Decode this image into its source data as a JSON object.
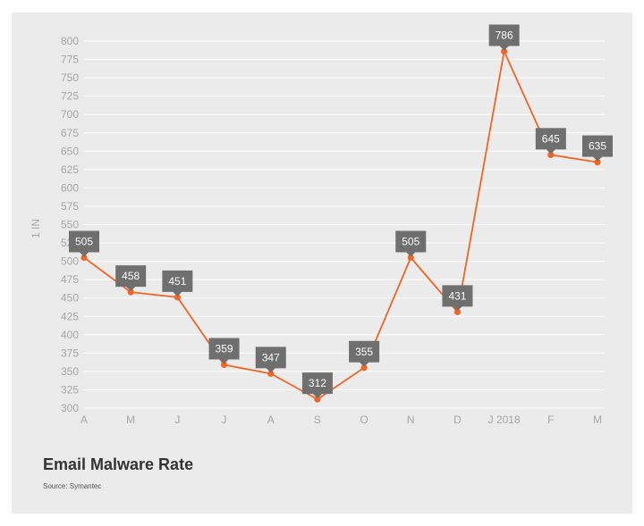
{
  "chart_data": {
    "type": "line",
    "title": "Email Malware Rate",
    "source": "Source: Symantec",
    "ylabel": "1 IN",
    "xlabel": "",
    "categories": [
      "A",
      "M",
      "J",
      "J",
      "A",
      "S",
      "O",
      "N",
      "D",
      "J 2018",
      "F",
      "M"
    ],
    "series": [
      {
        "values": [
          505,
          458,
          451,
          359,
          347,
          312,
          355,
          505,
          431,
          786,
          645,
          635
        ]
      }
    ],
    "ylim": [
      300,
      800
    ],
    "y_ticks": [
      300,
      325,
      350,
      375,
      400,
      425,
      450,
      475,
      500,
      525,
      550,
      575,
      600,
      625,
      650,
      675,
      700,
      725,
      750,
      775,
      800
    ],
    "grid": true,
    "data_labels": true,
    "colors": {
      "line": "#f26522",
      "callout": "#6f6f6f",
      "grid": "#ffffff",
      "background": "#ebebeb",
      "tick_text": "#a6a6a6"
    }
  }
}
